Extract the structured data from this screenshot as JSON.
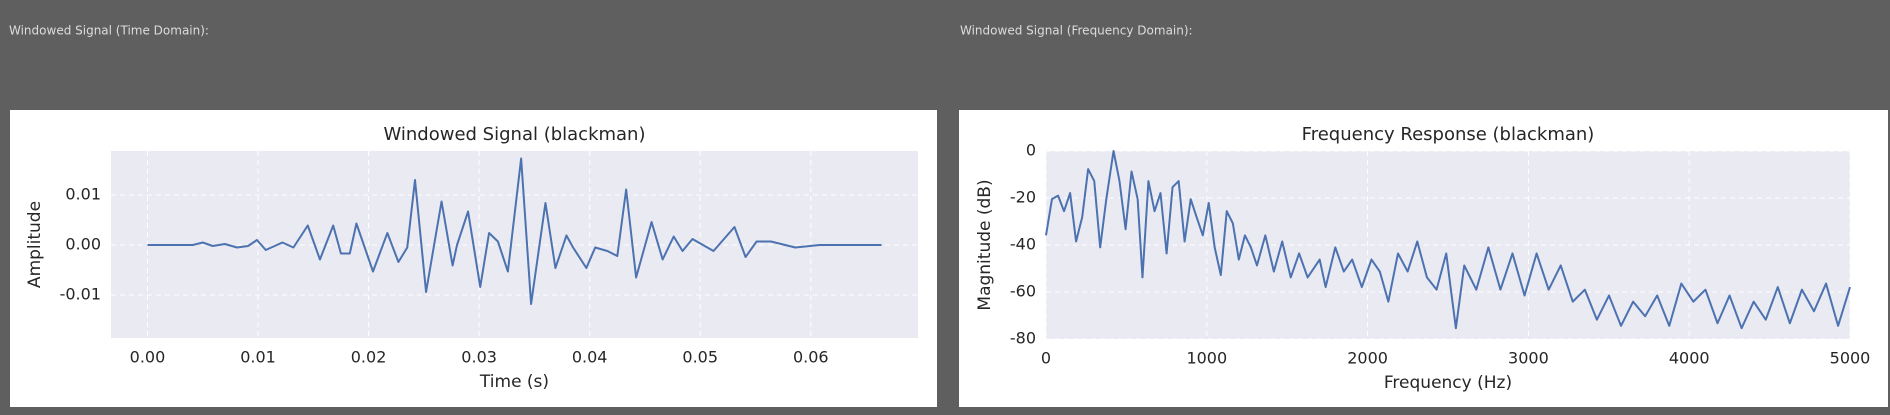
{
  "labels": [
    "Windowed Signal (Time Domain):",
    "Windowed Signal (Frequency Domain):"
  ],
  "chart_data": [
    {
      "type": "line",
      "title": "Windowed Signal (blackman)",
      "xlabel": "Time (s)",
      "ylabel": "Amplitude",
      "x": [
        0,
        0.0041,
        0.005,
        0.0059,
        0.007,
        0.0081,
        0.0091,
        0.0099,
        0.0107,
        0.0122,
        0.0132,
        0.0145,
        0.0156,
        0.0168,
        0.0175,
        0.0183,
        0.0189,
        0.0204,
        0.0217,
        0.0227,
        0.0235,
        0.0242,
        0.0252,
        0.0266,
        0.0276,
        0.028,
        0.029,
        0.0301,
        0.0309,
        0.0317,
        0.0326,
        0.0338,
        0.0347,
        0.036,
        0.0369,
        0.0379,
        0.0385,
        0.0397,
        0.0405,
        0.0416,
        0.0425,
        0.0433,
        0.0442,
        0.0456,
        0.0466,
        0.0476,
        0.0484,
        0.0493,
        0.0512,
        0.0531,
        0.0541,
        0.0551,
        0.0564,
        0.0586,
        0.0608,
        0.0664
      ],
      "series": [
        {
          "color": "#4c72b0",
          "values": [
            0,
            0,
            0.0005,
            -0.0002,
            0.0002,
            -0.0005,
            -0.0002,
            0.001,
            -0.001,
            0.0005,
            -0.0005,
            0.0039,
            -0.0029,
            0.0039,
            -0.0017,
            -0.0017,
            0.0043,
            -0.0053,
            0.0024,
            -0.0034,
            -0.0005,
            0.013,
            -0.0094,
            0.0087,
            -0.0041,
            0,
            0.0067,
            -0.0084,
            0.0024,
            0.0007,
            -0.0053,
            0.0173,
            -0.0118,
            0.0084,
            -0.0046,
            0.0019,
            -0.0005,
            -0.0046,
            -0.0005,
            -0.0012,
            -0.0022,
            0.0111,
            -0.0065,
            0.0046,
            -0.0029,
            0.0017,
            -0.0012,
            0.0012,
            -0.0012,
            0.0036,
            -0.0024,
            0.0007,
            0.0007,
            -0.0005,
            0,
            0
          ]
        }
      ],
      "xlim": [
        -0.0033,
        0.0697
      ],
      "ylim": [
        -0.0186,
        0.0188
      ],
      "xticks": [
        {
          "value": 0,
          "label": "0.00"
        },
        0.01,
        0.02,
        0.03,
        0.04,
        0.05,
        0.06
      ],
      "yticks": [
        -0.01,
        {
          "value": 0,
          "label": "0.00"
        },
        0.01
      ],
      "grid": true
    },
    {
      "type": "line",
      "title": "Frequency Response (blackman)",
      "xlabel": "Frequency (Hz)",
      "ylabel": "Magnitude (dB)",
      "x": [
        0,
        37,
        75,
        112,
        150,
        187,
        225,
        262,
        300,
        337,
        375,
        420,
        457,
        495,
        532,
        570,
        600,
        637,
        675,
        712,
        750,
        787,
        825,
        862,
        900,
        937,
        975,
        1012,
        1049,
        1087,
        1124,
        1162,
        1199,
        1237,
        1274,
        1312,
        1364,
        1417,
        1469,
        1522,
        1574,
        1627,
        1702,
        1739,
        1799,
        1852,
        1904,
        1964,
        2024,
        2076,
        2129,
        2189,
        2249,
        2309,
        2369,
        2429,
        2489,
        2549,
        2601,
        2676,
        2751,
        2826,
        2901,
        2976,
        3051,
        3126,
        3201,
        3276,
        3351,
        3426,
        3501,
        3576,
        3651,
        3726,
        3801,
        3876,
        3951,
        4026,
        4101,
        4176,
        4251,
        4326,
        4401,
        4476,
        4551,
        4626,
        4701,
        4776,
        4851,
        4926,
        5000
      ],
      "series": [
        {
          "color": "#4c72b0",
          "values": [
            -35.9,
            -20.5,
            -19.0,
            -25.6,
            -17.9,
            -38.5,
            -28.2,
            -7.7,
            -12.8,
            -41.0,
            -20.5,
            0,
            -12.8,
            -33.3,
            -8.7,
            -20.5,
            -53.8,
            -12.8,
            -25.6,
            -17.9,
            -43.6,
            -15.4,
            -12.8,
            -38.5,
            -20.5,
            -28.2,
            -35.9,
            -22.1,
            -41.0,
            -52.8,
            -25.6,
            -30.8,
            -46.2,
            -35.9,
            -41.0,
            -48.7,
            -35.9,
            -51.3,
            -38.5,
            -53.8,
            -43.6,
            -53.8,
            -46.2,
            -57.9,
            -41.0,
            -51.3,
            -46.2,
            -57.9,
            -46.2,
            -51.3,
            -64.1,
            -43.6,
            -51.3,
            -38.5,
            -53.8,
            -59.0,
            -43.6,
            -75.4,
            -48.7,
            -59.0,
            -41.0,
            -59.0,
            -43.6,
            -61.5,
            -43.6,
            -59.0,
            -48.7,
            -64.1,
            -59.0,
            -71.8,
            -61.5,
            -74.4,
            -64.1,
            -70.3,
            -61.5,
            -74.4,
            -56.4,
            -64.1,
            -59.0,
            -73.3,
            -61.5,
            -75.4,
            -64.1,
            -71.8,
            -57.9,
            -73.3,
            -59.0,
            -68.2,
            -56.4,
            -74.4,
            -57.9
          ]
        }
      ],
      "xlim": [
        0,
        5000
      ],
      "ylim": [
        -80,
        0
      ],
      "xticks": [
        0,
        1000,
        2000,
        3000,
        4000,
        5000
      ],
      "yticks": [
        -80,
        -60,
        -40,
        -20,
        0
      ],
      "grid": true
    }
  ]
}
